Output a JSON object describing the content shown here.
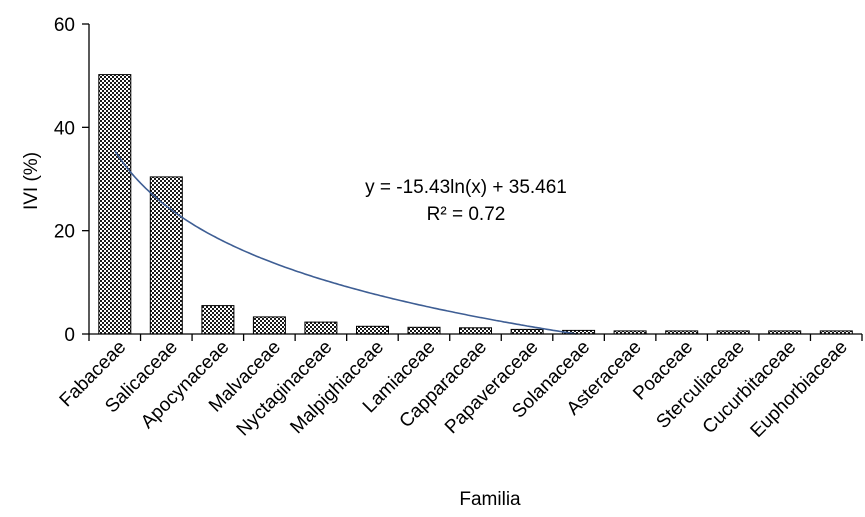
{
  "chart_data": {
    "type": "bar",
    "categories": [
      "Fabaceae",
      "Salicaceae",
      "Apocynaceae",
      "Malvaceae",
      "Nyctaginaceae",
      "Malpighiaceae",
      "Lamiaceae",
      "Capparaceae",
      "Papaveraceae",
      "Solanaceae",
      "Asteraceae",
      "Poaceae",
      "Sterculiaceae",
      "Cucurbitaceae",
      "Euphorbiaceae"
    ],
    "values": [
      50.2,
      30.4,
      5.5,
      3.3,
      2.3,
      1.5,
      1.3,
      1.2,
      0.9,
      0.7,
      0.6,
      0.6,
      0.6,
      0.6,
      0.6
    ],
    "xlabel": "Familia",
    "ylabel": "IVI (%)",
    "ylim": [
      0,
      60
    ],
    "yticks": [
      0,
      20,
      40,
      60
    ],
    "grid": false,
    "bar_pattern": "black-and-white checkered",
    "trendline": {
      "type": "logarithmic",
      "a": -15.43,
      "b": 35.461,
      "color": "#3e5e94",
      "equation": "y = -15.43ln(x) + 35.461",
      "r_squared": "R² = 0.72"
    }
  }
}
